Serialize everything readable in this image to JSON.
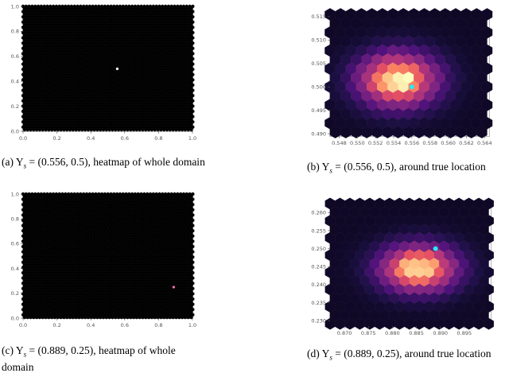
{
  "chart_data": [
    {
      "id": "a",
      "type": "heatmap",
      "plot": "hexbin",
      "xlim": [
        0,
        1
      ],
      "ylim": [
        0,
        1
      ],
      "xticks": [
        "0.0",
        "0.2",
        "0.4",
        "0.6",
        "0.8",
        "1.0"
      ],
      "yticks": [
        "0.0",
        "0.2",
        "0.4",
        "0.6",
        "0.8",
        "1.0"
      ],
      "x_tick_values": [
        0,
        0.2,
        0.4,
        0.6,
        0.8,
        1.0
      ],
      "y_tick_values": [
        0,
        0.2,
        0.4,
        0.6,
        0.8,
        1.0
      ],
      "background_color": "#000000",
      "true_location": [
        0.556,
        0.5
      ],
      "true_location_color": "#ffffff",
      "caption_label": "(a) Y",
      "caption_math": "s",
      "caption_rest": " = (0.556, 0.5), heatmap of whole domain"
    },
    {
      "id": "b",
      "type": "heatmap",
      "plot": "hexbin",
      "xlim": [
        0.547,
        0.5645
      ],
      "ylim": [
        0.4895,
        0.5155
      ],
      "xticks": [
        "0.548",
        "0.550",
        "0.552",
        "0.554",
        "0.556",
        "0.558",
        "0.560",
        "0.562",
        "0.564"
      ],
      "yticks": [
        "0.490",
        "0.495",
        "0.500",
        "0.505",
        "0.510",
        "0.515"
      ],
      "x_tick_values": [
        0.548,
        0.55,
        0.552,
        0.554,
        0.556,
        0.558,
        0.56,
        0.562,
        0.564
      ],
      "y_tick_values": [
        0.49,
        0.495,
        0.5,
        0.505,
        0.51,
        0.515
      ],
      "background_color": "#000000",
      "density_center": [
        0.5545,
        0.5015
      ],
      "density_spread": [
        0.003,
        0.004
      ],
      "true_location": [
        0.556,
        0.5
      ],
      "true_location_color": "#2ee6f0",
      "caption_label": "(b) Y",
      "caption_math": "s",
      "caption_rest": " = (0.556, 0.5), around true location"
    },
    {
      "id": "c",
      "type": "heatmap",
      "plot": "hexbin",
      "xlim": [
        0,
        1
      ],
      "ylim": [
        0,
        1
      ],
      "xticks": [
        "0.0",
        "0.2",
        "0.4",
        "0.6",
        "0.8",
        "1.0"
      ],
      "yticks": [
        "0.0",
        "0.2",
        "0.4",
        "0.6",
        "0.8",
        "1.0"
      ],
      "x_tick_values": [
        0,
        0.2,
        0.4,
        0.6,
        0.8,
        1.0
      ],
      "y_tick_values": [
        0,
        0.2,
        0.4,
        0.6,
        0.8,
        1.0
      ],
      "background_color": "#000000",
      "true_location": [
        0.889,
        0.25
      ],
      "true_location_color": "#ff6fb0",
      "caption_label": "(c) Y",
      "caption_math": "s",
      "caption_rest": " = (0.889, 0.25), heatmap of whole domain"
    },
    {
      "id": "d",
      "type": "heatmap",
      "plot": "hexbin",
      "xlim": [
        0.867,
        0.9005
      ],
      "ylim": [
        0.2285,
        0.2625
      ],
      "xticks": [
        "0.870",
        "0.875",
        "0.880",
        "0.885",
        "0.890",
        "0.895"
      ],
      "yticks": [
        "0.230",
        "0.235",
        "0.240",
        "0.245",
        "0.250",
        "0.255",
        "0.260"
      ],
      "x_tick_values": [
        0.87,
        0.875,
        0.88,
        0.885,
        0.89,
        0.895
      ],
      "y_tick_values": [
        0.23,
        0.235,
        0.24,
        0.245,
        0.25,
        0.255,
        0.26
      ],
      "background_color": "#000000",
      "density_center": [
        0.8855,
        0.2445
      ],
      "density_spread": [
        0.0055,
        0.0045
      ],
      "true_location": [
        0.889,
        0.25
      ],
      "true_location_color": "#2ee6f0",
      "caption_label": "(d) Y",
      "caption_math": "s",
      "caption_rest": " = (0.889, 0.25), around true location"
    }
  ]
}
